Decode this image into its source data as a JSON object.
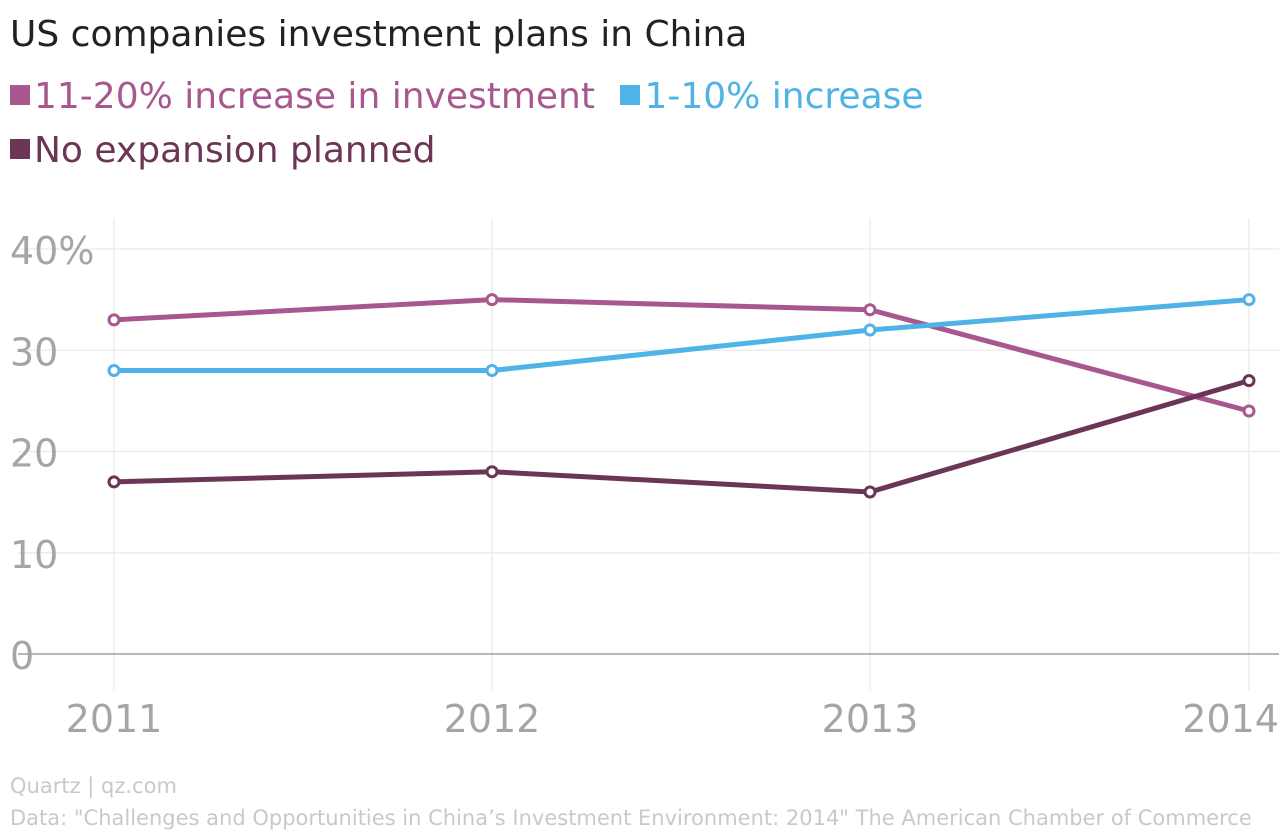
{
  "chart_data": {
    "type": "line",
    "title": "US companies investment plans in China",
    "x": [
      "2011",
      "2012",
      "2013",
      "2014"
    ],
    "series": [
      {
        "name": "11-20% increase in investment",
        "color": "#a8578f",
        "values": [
          33,
          35,
          34,
          24
        ]
      },
      {
        "name": "1-10% increase",
        "color": "#4fb3e5",
        "values": [
          28,
          28,
          32,
          35
        ]
      },
      {
        "name": "No expansion planned",
        "color": "#6b3556",
        "values": [
          17,
          18,
          16,
          27
        ]
      }
    ],
    "yticks": [
      "0",
      "10",
      "20",
      "30",
      "40%"
    ],
    "ylim": [
      0,
      40
    ],
    "grid": true,
    "legend_position": "top-left"
  },
  "footer": {
    "credit": "Quartz | qz.com",
    "source": "Data: \"Challenges and Opportunities in China’s Investment Environment: 2014\" The American Chamber of Commerce"
  }
}
